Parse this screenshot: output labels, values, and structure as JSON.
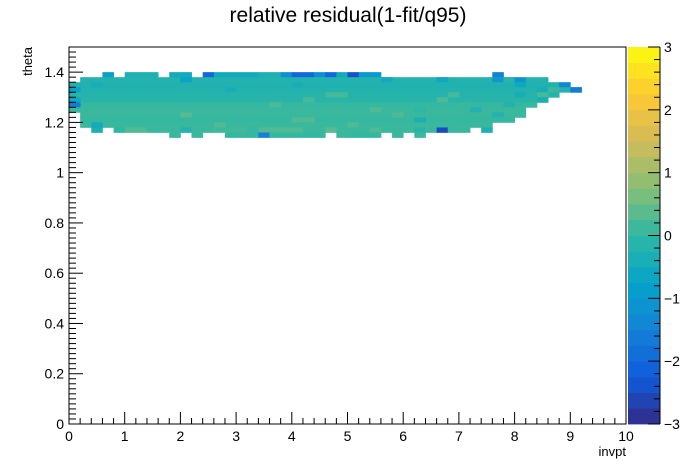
{
  "chart_data": {
    "type": "heatmap",
    "title": "relative residual(1-fit/q95)",
    "xlabel": "invpt",
    "ylabel": "theta",
    "xlim": [
      0,
      10
    ],
    "ylim": [
      0,
      1.5
    ],
    "zlim": [
      -3,
      3
    ],
    "x_ticks": [
      "0",
      "1",
      "2",
      "3",
      "4",
      "5",
      "6",
      "7",
      "8",
      "9",
      "10"
    ],
    "y_ticks": [
      "0",
      "0.2",
      "0.4",
      "0.6",
      "0.8",
      "1",
      "1.2",
      "1.4"
    ],
    "z_ticks": [
      "3",
      "2",
      "1",
      "0",
      "−1",
      "−2",
      "−3"
    ],
    "colormap": [
      "#352a87",
      "#0f5cdd",
      "#1481d6",
      "#06a4ca",
      "#2eb7a4",
      "#87bf77",
      "#d1bb59",
      "#fec832",
      "#f9fb0e"
    ],
    "grid": false,
    "bin_width_x": 0.2,
    "bin_height_y": 0.02,
    "cells": [
      {
        "x0": 0.6,
        "x1": 0.8,
        "y0": 1.38,
        "y1": 1.4,
        "z": -0.8
      },
      {
        "x0": 1.0,
        "x1": 1.6,
        "y0": 1.38,
        "y1": 1.4,
        "z": -0.3
      },
      {
        "x0": 1.8,
        "x1": 2.2,
        "y0": 1.38,
        "y1": 1.4,
        "z": -0.5
      },
      {
        "x0": 2.4,
        "x1": 2.6,
        "y0": 1.38,
        "y1": 1.4,
        "z": -2.0
      },
      {
        "x0": 2.6,
        "x1": 3.4,
        "y0": 1.38,
        "y1": 1.4,
        "z": -0.5
      },
      {
        "x0": 3.4,
        "x1": 3.8,
        "y0": 1.38,
        "y1": 1.4,
        "z": -0.3
      },
      {
        "x0": 3.8,
        "x1": 4.0,
        "y0": 1.38,
        "y1": 1.4,
        "z": -1.2
      },
      {
        "x0": 4.0,
        "x1": 4.4,
        "y0": 1.38,
        "y1": 1.4,
        "z": -2.0
      },
      {
        "x0": 4.4,
        "x1": 4.6,
        "y0": 1.38,
        "y1": 1.4,
        "z": -1.2
      },
      {
        "x0": 4.6,
        "x1": 4.8,
        "y0": 1.38,
        "y1": 1.4,
        "z": -2.0
      },
      {
        "x0": 4.8,
        "x1": 5.0,
        "y0": 1.38,
        "y1": 1.4,
        "z": -0.5
      },
      {
        "x0": 5.0,
        "x1": 5.2,
        "y0": 1.38,
        "y1": 1.4,
        "z": -2.4
      },
      {
        "x0": 5.2,
        "x1": 5.6,
        "y0": 1.38,
        "y1": 1.4,
        "z": -1.0
      },
      {
        "x0": 7.6,
        "x1": 7.8,
        "y0": 1.38,
        "y1": 1.4,
        "z": -1.5
      },
      {
        "x0": 0.2,
        "x1": 8.0,
        "y0": 1.36,
        "y1": 1.38,
        "z": -0.2
      },
      {
        "x0": 2.0,
        "x1": 2.2,
        "y0": 1.36,
        "y1": 1.38,
        "z": -0.7
      },
      {
        "x0": 5.6,
        "x1": 5.8,
        "y0": 1.36,
        "y1": 1.38,
        "z": -0.5
      },
      {
        "x0": 6.6,
        "x1": 6.8,
        "y0": 1.36,
        "y1": 1.38,
        "z": -0.6
      },
      {
        "x0": 7.6,
        "x1": 7.8,
        "y0": 1.36,
        "y1": 1.38,
        "z": -1.0
      },
      {
        "x0": 7.8,
        "x1": 8.0,
        "y0": 1.36,
        "y1": 1.38,
        "z": -0.1
      },
      {
        "x0": 8.0,
        "x1": 8.2,
        "y0": 1.36,
        "y1": 1.38,
        "z": -1.1
      },
      {
        "x0": 8.2,
        "x1": 8.6,
        "y0": 1.36,
        "y1": 1.38,
        "z": -0.2
      },
      {
        "x0": 0.0,
        "x1": 8.8,
        "y0": 1.34,
        "y1": 1.36,
        "z": -0.25
      },
      {
        "x0": 0.4,
        "x1": 0.6,
        "y0": 1.34,
        "y1": 1.36,
        "z": -0.4
      },
      {
        "x0": 4.0,
        "x1": 4.2,
        "y0": 1.34,
        "y1": 1.36,
        "z": -0.4
      },
      {
        "x0": 8.0,
        "x1": 8.2,
        "y0": 1.34,
        "y1": 1.36,
        "z": -0.6
      },
      {
        "x0": 8.8,
        "x1": 9.0,
        "y0": 1.34,
        "y1": 1.36,
        "z": -1.4
      },
      {
        "x0": 0.0,
        "x1": 9.2,
        "y0": 1.32,
        "y1": 1.34,
        "z": -0.2
      },
      {
        "x0": 0.0,
        "x1": 0.2,
        "y0": 1.32,
        "y1": 1.34,
        "z": -0.8
      },
      {
        "x0": 2.8,
        "x1": 3.0,
        "y0": 1.32,
        "y1": 1.34,
        "z": -0.4
      },
      {
        "x0": 8.4,
        "x1": 8.6,
        "y0": 1.32,
        "y1": 1.34,
        "z": -0.4
      },
      {
        "x0": 8.6,
        "x1": 8.8,
        "y0": 1.32,
        "y1": 1.34,
        "z": 0.1
      },
      {
        "x0": 9.0,
        "x1": 9.2,
        "y0": 1.32,
        "y1": 1.34,
        "z": -1.6
      },
      {
        "x0": 0.0,
        "x1": 8.8,
        "y0": 1.3,
        "y1": 1.32,
        "z": -0.15
      },
      {
        "x0": 4.6,
        "x1": 5.0,
        "y0": 1.3,
        "y1": 1.32,
        "z": 0.2
      },
      {
        "x0": 6.8,
        "x1": 7.0,
        "y0": 1.3,
        "y1": 1.32,
        "z": 0.2
      },
      {
        "x0": 8.0,
        "x1": 8.2,
        "y0": 1.3,
        "y1": 1.32,
        "z": -0.4
      },
      {
        "x0": 8.4,
        "x1": 8.6,
        "y0": 1.3,
        "y1": 1.32,
        "z": 0.2
      },
      {
        "x0": 0.0,
        "x1": 8.6,
        "y0": 1.28,
        "y1": 1.3,
        "z": -0.1
      },
      {
        "x0": 0.0,
        "x1": 0.2,
        "y0": 1.28,
        "y1": 1.3,
        "z": -0.6
      },
      {
        "x0": 4.2,
        "x1": 4.4,
        "y0": 1.28,
        "y1": 1.3,
        "z": 0.2
      },
      {
        "x0": 6.6,
        "x1": 6.8,
        "y0": 1.28,
        "y1": 1.3,
        "z": 0.25
      },
      {
        "x0": 8.4,
        "x1": 8.6,
        "y0": 1.28,
        "y1": 1.3,
        "z": -0.3
      },
      {
        "x0": 0.0,
        "x1": 8.4,
        "y0": 1.26,
        "y1": 1.28,
        "z": 0.05
      },
      {
        "x0": 0.0,
        "x1": 0.2,
        "y0": 1.26,
        "y1": 1.28,
        "z": -1.6
      },
      {
        "x0": 3.6,
        "x1": 3.8,
        "y0": 1.26,
        "y1": 1.28,
        "z": 0.25
      },
      {
        "x0": 7.0,
        "x1": 7.2,
        "y0": 1.26,
        "y1": 1.28,
        "z": 0.1
      },
      {
        "x0": 7.8,
        "x1": 8.0,
        "y0": 1.26,
        "y1": 1.28,
        "z": -0.2
      },
      {
        "x0": 0.0,
        "x1": 8.2,
        "y0": 1.24,
        "y1": 1.26,
        "z": 0.1
      },
      {
        "x0": 5.4,
        "x1": 5.6,
        "y0": 1.24,
        "y1": 1.26,
        "z": 0.3
      },
      {
        "x0": 6.2,
        "x1": 6.4,
        "y0": 1.24,
        "y1": 1.26,
        "z": 0.0
      },
      {
        "x0": 7.2,
        "x1": 7.4,
        "y0": 1.24,
        "y1": 1.26,
        "z": -0.2
      },
      {
        "x0": 0.2,
        "x1": 8.2,
        "y0": 1.22,
        "y1": 1.24,
        "z": 0.1
      },
      {
        "x0": 2.0,
        "x1": 2.2,
        "y0": 1.22,
        "y1": 1.24,
        "z": 0.35
      },
      {
        "x0": 5.8,
        "x1": 6.0,
        "y0": 1.22,
        "y1": 1.24,
        "z": 0.3
      },
      {
        "x0": 7.6,
        "x1": 7.8,
        "y0": 1.22,
        "y1": 1.24,
        "z": -0.2
      },
      {
        "x0": 0.2,
        "x1": 8.0,
        "y0": 1.2,
        "y1": 1.22,
        "z": 0.05
      },
      {
        "x0": 4.0,
        "x1": 4.4,
        "y0": 1.2,
        "y1": 1.22,
        "z": 0.3
      },
      {
        "x0": 6.2,
        "x1": 6.4,
        "y0": 1.2,
        "y1": 1.22,
        "z": -0.3
      },
      {
        "x0": 0.2,
        "x1": 7.6,
        "y0": 1.18,
        "y1": 1.2,
        "z": 0.1
      },
      {
        "x0": 0.4,
        "x1": 0.6,
        "y0": 1.18,
        "y1": 1.2,
        "z": -0.5
      },
      {
        "x0": 2.6,
        "x1": 2.8,
        "y0": 1.18,
        "y1": 1.2,
        "z": 0.3
      },
      {
        "x0": 5.0,
        "x1": 5.2,
        "y0": 1.18,
        "y1": 1.2,
        "z": 0.3
      },
      {
        "x0": 0.4,
        "x1": 0.6,
        "y0": 1.16,
        "y1": 1.18,
        "z": -0.3
      },
      {
        "x0": 0.8,
        "x1": 1.0,
        "y0": 1.16,
        "y1": 1.18,
        "z": 0.0
      },
      {
        "x0": 1.0,
        "x1": 1.4,
        "y0": 1.16,
        "y1": 1.18,
        "z": 0.3
      },
      {
        "x0": 1.4,
        "x1": 2.0,
        "y0": 1.16,
        "y1": 1.18,
        "z": 0.1
      },
      {
        "x0": 2.0,
        "x1": 2.2,
        "y0": 1.16,
        "y1": 1.18,
        "z": -0.2
      },
      {
        "x0": 2.2,
        "x1": 2.6,
        "y0": 1.16,
        "y1": 1.18,
        "z": 0.1
      },
      {
        "x0": 2.6,
        "x1": 3.2,
        "y0": 1.16,
        "y1": 1.18,
        "z": 0.15
      },
      {
        "x0": 3.2,
        "x1": 3.4,
        "y0": 1.16,
        "y1": 1.18,
        "z": 0.05
      },
      {
        "x0": 3.4,
        "x1": 4.2,
        "y0": 1.16,
        "y1": 1.18,
        "z": 0.3
      },
      {
        "x0": 4.2,
        "x1": 4.6,
        "y0": 1.16,
        "y1": 1.18,
        "z": 0.1
      },
      {
        "x0": 4.6,
        "x1": 4.8,
        "y0": 1.16,
        "y1": 1.18,
        "z": 0.35
      },
      {
        "x0": 4.8,
        "x1": 5.4,
        "y0": 1.16,
        "y1": 1.18,
        "z": 0.1
      },
      {
        "x0": 5.4,
        "x1": 5.6,
        "y0": 1.16,
        "y1": 1.18,
        "z": 0.3
      },
      {
        "x0": 5.6,
        "x1": 6.2,
        "y0": 1.16,
        "y1": 1.18,
        "z": 0.1
      },
      {
        "x0": 6.2,
        "x1": 6.4,
        "y0": 1.16,
        "y1": 1.18,
        "z": -0.1
      },
      {
        "x0": 6.4,
        "x1": 6.6,
        "y0": 1.16,
        "y1": 1.18,
        "z": 0.1
      },
      {
        "x0": 6.6,
        "x1": 6.8,
        "y0": 1.16,
        "y1": 1.18,
        "z": -2.5
      },
      {
        "x0": 6.8,
        "x1": 7.2,
        "y0": 1.16,
        "y1": 1.18,
        "z": 0.1
      },
      {
        "x0": 7.4,
        "x1": 7.6,
        "y0": 1.16,
        "y1": 1.18,
        "z": -0.3
      },
      {
        "x0": 1.8,
        "x1": 2.0,
        "y0": 1.14,
        "y1": 1.16,
        "z": 0.1
      },
      {
        "x0": 2.2,
        "x1": 2.4,
        "y0": 1.14,
        "y1": 1.16,
        "z": 0.1
      },
      {
        "x0": 2.8,
        "x1": 3.4,
        "y0": 1.14,
        "y1": 1.16,
        "z": 0.05
      },
      {
        "x0": 3.4,
        "x1": 3.6,
        "y0": 1.14,
        "y1": 1.16,
        "z": -1.5
      },
      {
        "x0": 3.6,
        "x1": 4.6,
        "y0": 1.14,
        "y1": 1.16,
        "z": 0.05
      },
      {
        "x0": 4.8,
        "x1": 5.0,
        "y0": 1.14,
        "y1": 1.16,
        "z": 0.1
      },
      {
        "x0": 5.0,
        "x1": 5.6,
        "y0": 1.14,
        "y1": 1.16,
        "z": 0.05
      },
      {
        "x0": 5.8,
        "x1": 6.0,
        "y0": 1.14,
        "y1": 1.16,
        "z": 0.1
      },
      {
        "x0": 6.2,
        "x1": 6.4,
        "y0": 1.14,
        "y1": 1.16,
        "z": 0.1
      }
    ]
  }
}
